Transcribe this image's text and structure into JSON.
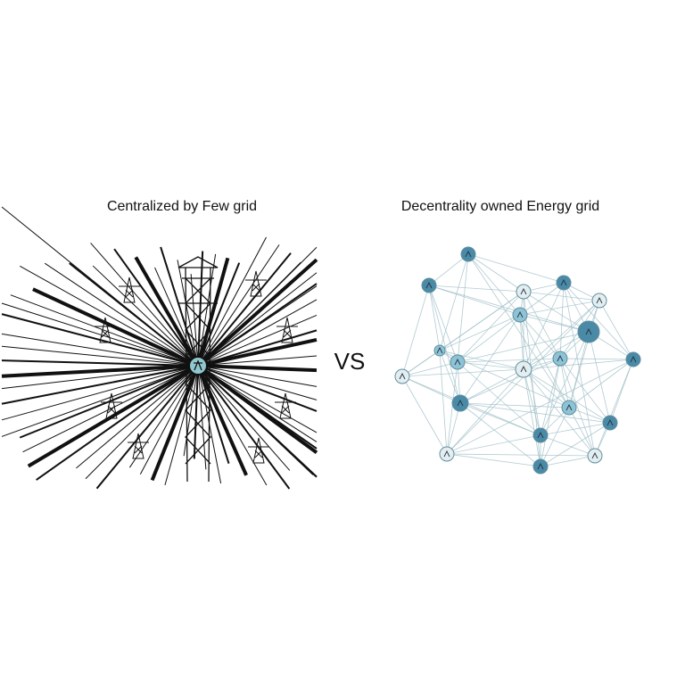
{
  "left": {
    "title": "Centralized by Few grid"
  },
  "separator": "VS",
  "right": {
    "title": "Decentrality owned Energy grid"
  }
}
